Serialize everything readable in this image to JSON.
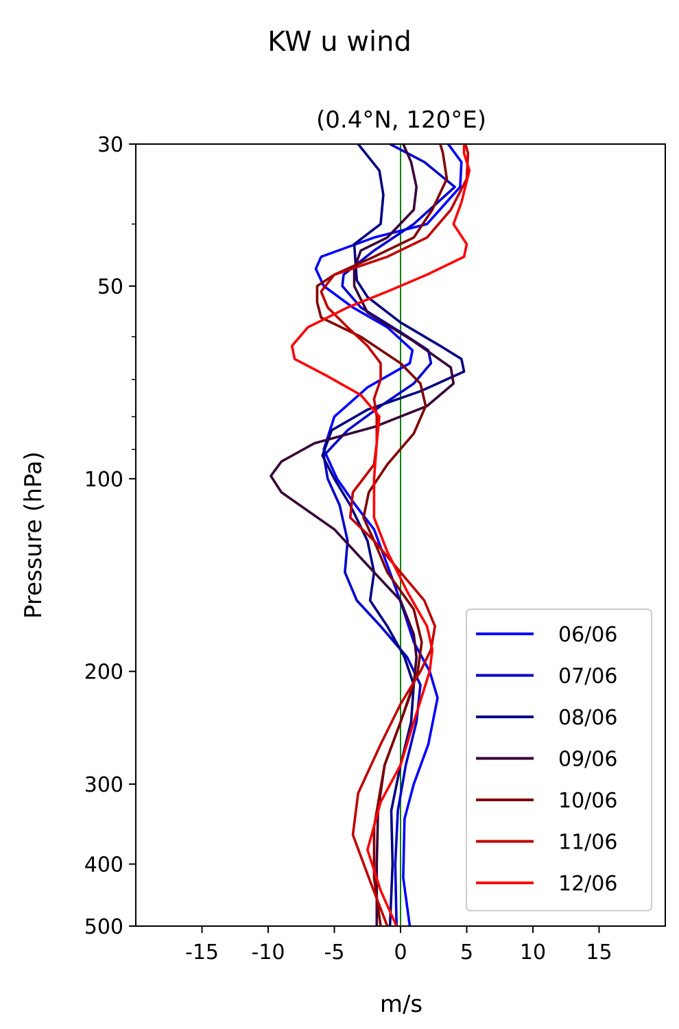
{
  "chart_data": {
    "type": "line",
    "title": "KW u wind",
    "subtitle": "(0.4°N, 120°E)",
    "xlabel": "m/s",
    "ylabel": "Pressure (hPa)",
    "xlim": [
      -20,
      20
    ],
    "ylim": [
      500,
      30
    ],
    "yscale": "log",
    "x_ticks": [
      -15,
      -10,
      -5,
      0,
      5,
      10,
      15
    ],
    "x_tick_labels": [
      "-15",
      "-10",
      "-5",
      "0",
      "5",
      "10",
      "15"
    ],
    "y_ticks": [
      30,
      50,
      100,
      200,
      300,
      400,
      500
    ],
    "y_tick_labels": [
      "30",
      "50",
      "100",
      "200",
      "300",
      "400",
      "500"
    ],
    "y_minor_ticks": [
      40,
      60,
      70,
      80,
      90
    ],
    "reference_line": {
      "x": 0,
      "color": "#008000"
    },
    "legend_position": "lower-right",
    "series": [
      {
        "name": "06/06",
        "color": "#0000ff",
        "points": [
          [
            0.7,
            500
          ],
          [
            0.2,
            420
          ],
          [
            0.3,
            340
          ],
          [
            1.0,
            300
          ],
          [
            2.1,
            260
          ],
          [
            2.8,
            220
          ],
          [
            2.2,
            200
          ],
          [
            1.0,
            180
          ],
          [
            0.2,
            160
          ],
          [
            -0.8,
            140
          ],
          [
            -2.0,
            120
          ],
          [
            -3.4,
            110
          ],
          [
            -4.8,
            100
          ],
          [
            -5.8,
            90
          ],
          [
            -5.0,
            80
          ],
          [
            -2.5,
            72
          ],
          [
            0.7,
            66
          ],
          [
            0.9,
            63
          ],
          [
            -1.0,
            58
          ],
          [
            -3.6,
            54
          ],
          [
            -5.8,
            50
          ],
          [
            -6.4,
            47
          ],
          [
            -6.0,
            45
          ],
          [
            -2.0,
            42
          ],
          [
            2.0,
            40
          ],
          [
            4.5,
            35
          ],
          [
            4.6,
            32
          ],
          [
            3.6,
            30
          ]
        ]
      },
      {
        "name": "07/06",
        "color": "#0000cc",
        "points": [
          [
            -0.3,
            500
          ],
          [
            -0.4,
            400
          ],
          [
            -0.2,
            330
          ],
          [
            0.4,
            280
          ],
          [
            1.2,
            240
          ],
          [
            1.5,
            210
          ],
          [
            0.5,
            190
          ],
          [
            -1.5,
            170
          ],
          [
            -3.3,
            155
          ],
          [
            -4.2,
            140
          ],
          [
            -4.0,
            125
          ],
          [
            -4.6,
            110
          ],
          [
            -5.5,
            100
          ],
          [
            -5.8,
            92
          ],
          [
            -4.0,
            84
          ],
          [
            -1.5,
            77
          ],
          [
            1.0,
            71
          ],
          [
            2.3,
            66
          ],
          [
            2.1,
            63
          ],
          [
            0.0,
            59
          ],
          [
            -3.0,
            54
          ],
          [
            -4.4,
            50
          ],
          [
            -4.3,
            48
          ],
          [
            -2.0,
            44
          ],
          [
            1.0,
            40
          ],
          [
            4.1,
            35
          ],
          [
            1.8,
            32
          ],
          [
            -0.8,
            30
          ]
        ]
      },
      {
        "name": "08/06",
        "color": "#000080",
        "points": [
          [
            -0.8,
            500
          ],
          [
            -0.6,
            400
          ],
          [
            -0.7,
            330
          ],
          [
            0.0,
            280
          ],
          [
            0.8,
            240
          ],
          [
            1.0,
            210
          ],
          [
            0.3,
            190
          ],
          [
            -1.0,
            170
          ],
          [
            -2.3,
            155
          ],
          [
            -2.0,
            140
          ],
          [
            -2.5,
            125
          ],
          [
            -3.8,
            110
          ],
          [
            -5.0,
            100
          ],
          [
            -5.9,
            92
          ],
          [
            -5.2,
            84
          ],
          [
            -2.5,
            78
          ],
          [
            1.5,
            73
          ],
          [
            4.8,
            68
          ],
          [
            4.6,
            65
          ],
          [
            3.0,
            62
          ],
          [
            0.0,
            57
          ],
          [
            -2.5,
            52
          ],
          [
            -3.3,
            49
          ],
          [
            -3.4,
            46
          ],
          [
            -3.5,
            43
          ],
          [
            -1.5,
            40
          ],
          [
            -1.3,
            36
          ],
          [
            -1.6,
            33
          ],
          [
            -3.2,
            30
          ]
        ]
      },
      {
        "name": "09/06",
        "color": "#380038",
        "points": [
          [
            -1.8,
            500
          ],
          [
            -1.8,
            400
          ],
          [
            -1.7,
            330
          ],
          [
            -1.2,
            280
          ],
          [
            0.0,
            240
          ],
          [
            1.0,
            210
          ],
          [
            1.2,
            190
          ],
          [
            1.0,
            175
          ],
          [
            0.0,
            155
          ],
          [
            -2.0,
            140
          ],
          [
            -5.0,
            120
          ],
          [
            -9.0,
            105
          ],
          [
            -9.8,
            99
          ],
          [
            -9.0,
            94
          ],
          [
            -6.5,
            88
          ],
          [
            -2.0,
            83
          ],
          [
            2.0,
            77
          ],
          [
            4.0,
            71
          ],
          [
            3.8,
            67
          ],
          [
            1.0,
            61
          ],
          [
            -2.5,
            55
          ],
          [
            -3.5,
            50
          ],
          [
            -3.5,
            47
          ],
          [
            -3.0,
            44
          ],
          [
            -1.0,
            42
          ],
          [
            1.0,
            38
          ],
          [
            1.2,
            35
          ],
          [
            0.8,
            32
          ],
          [
            0.2,
            30
          ]
        ]
      },
      {
        "name": "10/06",
        "color": "#800000",
        "points": [
          [
            -1.5,
            500
          ],
          [
            -2.0,
            420
          ],
          [
            -2.0,
            350
          ],
          [
            -1.2,
            280
          ],
          [
            0.0,
            240
          ],
          [
            1.3,
            200
          ],
          [
            1.6,
            180
          ],
          [
            1.0,
            160
          ],
          [
            -1.0,
            140
          ],
          [
            -2.0,
            125
          ],
          [
            -2.8,
            115
          ],
          [
            -2.4,
            105
          ],
          [
            -1.0,
            95
          ],
          [
            1.0,
            85
          ],
          [
            1.9,
            77
          ],
          [
            1.5,
            71
          ],
          [
            0.0,
            66
          ],
          [
            -3.0,
            60
          ],
          [
            -6.0,
            56
          ],
          [
            -6.3,
            53
          ],
          [
            -6.3,
            50
          ],
          [
            -5.0,
            48
          ],
          [
            -2.0,
            45
          ],
          [
            1.0,
            42
          ],
          [
            2.4,
            38
          ],
          [
            3.5,
            34
          ],
          [
            3.2,
            31
          ],
          [
            3.0,
            30
          ]
        ]
      },
      {
        "name": "11/06",
        "color": "#c00000",
        "points": [
          [
            -1.0,
            500
          ],
          [
            -2.4,
            420
          ],
          [
            -3.6,
            360
          ],
          [
            -3.2,
            310
          ],
          [
            -1.5,
            260
          ],
          [
            0.0,
            225
          ],
          [
            1.5,
            200
          ],
          [
            2.3,
            185
          ],
          [
            2.6,
            170
          ],
          [
            1.8,
            155
          ],
          [
            0.0,
            140
          ],
          [
            -2.0,
            125
          ],
          [
            -3.8,
            115
          ],
          [
            -3.6,
            105
          ],
          [
            -2.0,
            95
          ],
          [
            -1.8,
            88
          ],
          [
            -1.8,
            80
          ],
          [
            -2.0,
            75
          ],
          [
            -1.5,
            70
          ],
          [
            -1.5,
            66
          ],
          [
            -2.5,
            62
          ],
          [
            -4.0,
            58
          ],
          [
            -5.5,
            54
          ],
          [
            -6.0,
            51
          ],
          [
            -5.0,
            48
          ],
          [
            -1.0,
            45
          ],
          [
            2.0,
            42
          ],
          [
            3.8,
            38
          ],
          [
            5.0,
            34
          ],
          [
            5.1,
            31
          ],
          [
            4.9,
            30
          ]
        ]
      },
      {
        "name": "12/06",
        "color": "#ff0000",
        "points": [
          [
            -0.3,
            500
          ],
          [
            -1.5,
            440
          ],
          [
            -2.5,
            380
          ],
          [
            -1.5,
            320
          ],
          [
            0.0,
            280
          ],
          [
            1.0,
            240
          ],
          [
            2.2,
            200
          ],
          [
            2.4,
            185
          ],
          [
            2.0,
            170
          ],
          [
            0.5,
            150
          ],
          [
            -1.0,
            130
          ],
          [
            -2.0,
            115
          ],
          [
            -2.0,
            100
          ],
          [
            -1.8,
            88
          ],
          [
            -1.6,
            80
          ],
          [
            -3.0,
            74
          ],
          [
            -5.6,
            69
          ],
          [
            -8.0,
            65
          ],
          [
            -8.2,
            62
          ],
          [
            -7.0,
            58
          ],
          [
            -4.0,
            54
          ],
          [
            -1.0,
            51
          ],
          [
            2.0,
            48
          ],
          [
            4.8,
            45
          ],
          [
            5.0,
            43
          ],
          [
            4.0,
            40
          ],
          [
            4.6,
            37
          ],
          [
            5.2,
            33
          ],
          [
            4.8,
            31
          ],
          [
            4.8,
            30
          ]
        ]
      }
    ]
  }
}
